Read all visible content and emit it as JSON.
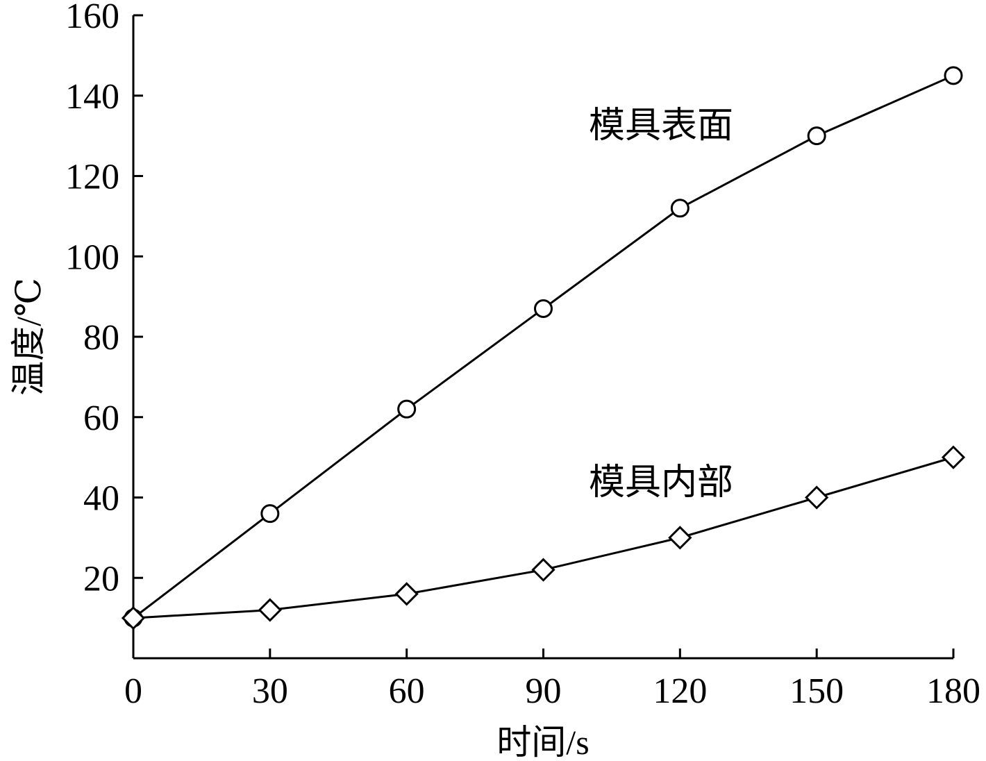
{
  "chart_data": {
    "type": "line",
    "title": "",
    "xlabel": "时间/s",
    "ylabel": "温度/℃",
    "x": [
      0,
      30,
      60,
      90,
      120,
      150,
      180
    ],
    "xticks": [
      "0",
      "30",
      "60",
      "90",
      "120",
      "150",
      "180"
    ],
    "yticks": [
      "20",
      "40",
      "60",
      "80",
      "100",
      "120",
      "140",
      "160"
    ],
    "xlim": [
      0,
      180
    ],
    "ylim": [
      0,
      160
    ],
    "grid": false,
    "legend": "none",
    "colors": {
      "line": "#000000",
      "background": "#ffffff"
    },
    "series": [
      {
        "name": "模具表面",
        "marker": "circle",
        "values": [
          10,
          36,
          62,
          87,
          112,
          130,
          145
        ]
      },
      {
        "name": "模具内部",
        "marker": "diamond",
        "values": [
          10,
          12,
          16,
          22,
          30,
          40,
          50
        ]
      }
    ]
  }
}
